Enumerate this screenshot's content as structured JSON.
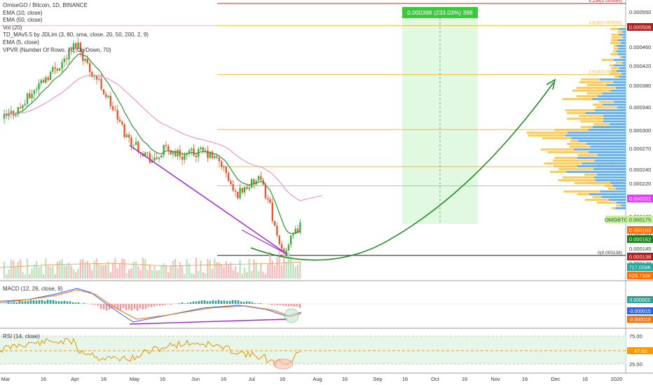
{
  "header": {
    "title": "OmiseGO / Bitcoin, 1D, BINANCE",
    "indicators": [
      "EMA (10, close)",
      "EMA (50, close)",
      "Vol (20)",
      "TD_MAv5.5 by JDLim (3, 80, sma, close, 20, 50, 200, 2, 9)",
      "EMA (5, close)",
      "VPVR (Number Of Rows, 70, Up/Down, 70)"
    ]
  },
  "panes": {
    "macd_label": "MACD (12, 26, close, 9)",
    "rsi_label": "RSI (14, close)"
  },
  "colors": {
    "up": "#3fae3f",
    "down": "#e8582c",
    "ema10": "#3c9a3c",
    "ema50": "#f28cc8",
    "trend": "#9b27d6",
    "projection": "#1e8c1e",
    "fib": "#f5b942",
    "target": "#ff9800"
  },
  "chart_data": {
    "type": "candlestick",
    "price_axis": {
      "ticks": [
        "0.000550",
        "0.000500",
        "0.000460",
        "0.000420",
        "0.000380",
        "0.000340",
        "0.000300",
        "0.000270",
        "0.000240",
        "0.000220",
        "0.000200",
        "0.000180",
        "0.000160",
        "0.000145",
        "0.000130"
      ],
      "badges": [
        {
          "text": "0.000506",
          "bg": "#b71c1c"
        },
        {
          "text": "0.000201",
          "bg": "#e040fb"
        },
        {
          "text": "OMGBTC",
          "bg": "#c8f0a0"
        },
        {
          "text": "0.000175",
          "bg": "#c8f0a0"
        },
        {
          "text": "0.000163",
          "bg": "#ff6d00"
        },
        {
          "text": "0.000162",
          "bg": "#1b7e1b"
        },
        {
          "text": "0.000138",
          "bg": "#b71c1c"
        },
        {
          "text": "717.059K",
          "bg": "#26a69a"
        },
        {
          "text": "529.734K",
          "bg": "#ff6d00"
        }
      ]
    },
    "time_axis": [
      "Mar",
      "16",
      "Apr",
      "16",
      "May",
      "16",
      "Jun",
      "16",
      "Jul",
      "16",
      "Aug",
      "16",
      "Sep",
      "16",
      "Oct",
      "16",
      "Nov",
      "16",
      "Dec",
      "16",
      "2020"
    ],
    "fib_levels": [
      {
        "label": "4.236(0.000585)",
        "value": 0.000585
      },
      {
        "label": "3.618(0.000506)",
        "value": 0.000506
      },
      {
        "label": "2.618(0.000402)",
        "value": 0.000402
      },
      {
        "label": "1.618(0.000301)",
        "value": 0.000301
      },
      {
        "label": "1(0.000244)",
        "value": 0.000244
      },
      {
        "label": "0.618(0.000217)",
        "value": 0.000217
      },
      {
        "label": "0(0.000138)",
        "value": 0.000138
      }
    ],
    "measure_label": "0.000398 (233.03%) 398",
    "macd_axis": {
      "badges": [
        {
          "text": "0.000003",
          "bg": "#26a69a"
        },
        {
          "text": "-0.000015",
          "bg": "#2962ff"
        },
        {
          "text": "-0.000018",
          "bg": "#ff6d00"
        }
      ]
    },
    "rsi_axis": {
      "ticks": [
        "75.00",
        "25.00"
      ],
      "value": "47.62"
    }
  }
}
